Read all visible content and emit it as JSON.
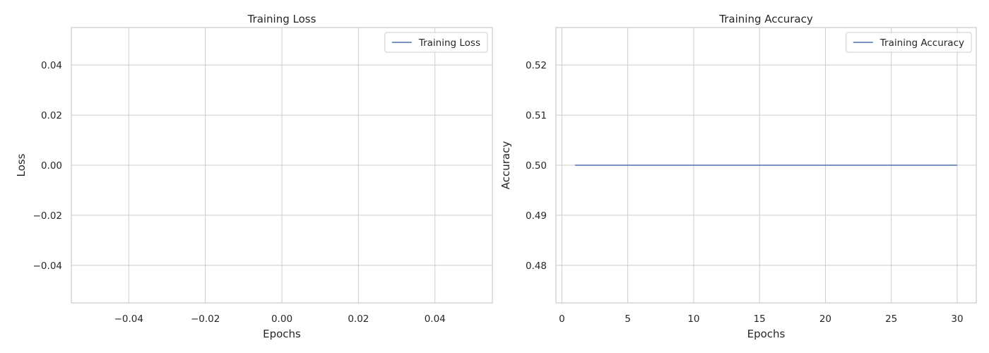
{
  "chart_data": [
    {
      "type": "line",
      "title": "Training Loss",
      "xlabel": "Epochs",
      "ylabel": "Loss",
      "xlim": [
        -0.055,
        0.055
      ],
      "ylim": [
        -0.055,
        0.055
      ],
      "xticks": [
        -0.04,
        -0.02,
        0.0,
        0.02,
        0.04
      ],
      "xtick_labels": [
        "−0.04",
        "−0.02",
        "0.00",
        "0.02",
        "0.04"
      ],
      "yticks": [
        -0.04,
        -0.02,
        0.0,
        0.02,
        0.04
      ],
      "ytick_labels": [
        "−0.04",
        "−0.02",
        "0.00",
        "0.02",
        "0.04"
      ],
      "grid": true,
      "legend_position": "top-right",
      "series": [
        {
          "name": "Training Loss",
          "color": "#4c72b0",
          "x": [],
          "y": []
        }
      ]
    },
    {
      "type": "line",
      "title": "Training Accuracy",
      "xlabel": "Epochs",
      "ylabel": "Accuracy",
      "xlim": [
        -0.45,
        31.45
      ],
      "ylim": [
        0.4725,
        0.5275
      ],
      "xticks": [
        0,
        5,
        10,
        15,
        20,
        25,
        30
      ],
      "xtick_labels": [
        "0",
        "5",
        "10",
        "15",
        "20",
        "25",
        "30"
      ],
      "yticks": [
        0.48,
        0.49,
        0.5,
        0.51,
        0.52
      ],
      "ytick_labels": [
        "0.48",
        "0.49",
        "0.50",
        "0.51",
        "0.52"
      ],
      "grid": true,
      "legend_position": "top-right",
      "series": [
        {
          "name": "Training Accuracy",
          "color": "#4c72b0",
          "x": [
            1,
            30
          ],
          "y": [
            0.5,
            0.5
          ]
        }
      ]
    }
  ]
}
